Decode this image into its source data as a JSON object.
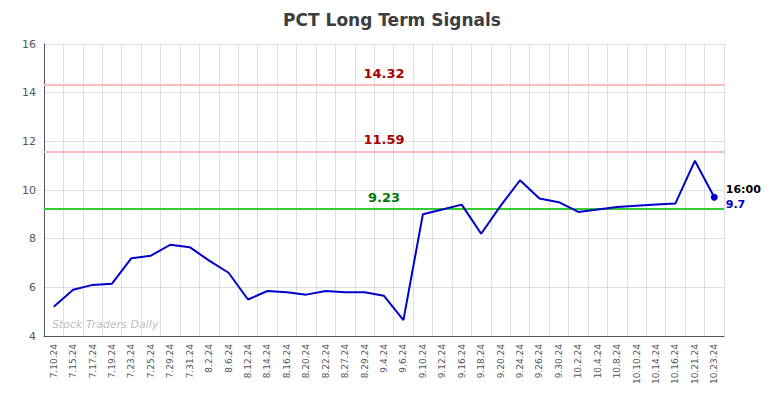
{
  "chart_data": {
    "type": "line",
    "title": "PCT Long Term Signals",
    "color": "#0000cc",
    "grid": true,
    "ylim": [
      4,
      16
    ],
    "yticks": [
      4,
      6,
      8,
      10,
      12,
      14,
      16
    ],
    "categories": [
      "7.10.24",
      "7.15.24",
      "7.17.24",
      "7.19.24",
      "7.23.24",
      "7.25.24",
      "7.29.24",
      "7.31.24",
      "8.2.24",
      "8.6.24",
      "8.12.24",
      "8.14.24",
      "8.16.24",
      "8.20.24",
      "8.22.24",
      "8.27.24",
      "8.29.24",
      "9.4.24",
      "9.6.24",
      "9.10.24",
      "9.12.24",
      "9.16.24",
      "9.18.24",
      "9.20.24",
      "9.24.24",
      "9.26.24",
      "9.30.24",
      "10.2.24",
      "10.4.24",
      "10.8.24",
      "10.10.24",
      "10.14.24",
      "10.16.24",
      "10.21.24",
      "10.23.24"
    ],
    "values": [
      5.2,
      5.9,
      6.1,
      6.15,
      7.2,
      7.3,
      7.75,
      7.65,
      7.1,
      6.6,
      5.5,
      5.85,
      5.8,
      5.7,
      5.85,
      5.8,
      5.8,
      5.65,
      4.65,
      9.0,
      9.2,
      9.4,
      8.2,
      9.35,
      10.4,
      9.65,
      9.5,
      9.1,
      9.2,
      9.3,
      9.35,
      9.4,
      9.45,
      11.2,
      9.7
    ],
    "hlines": [
      {
        "value": 14.32,
        "label": "14.32",
        "color": "#ffbbbb",
        "label_color": "#aa0000"
      },
      {
        "value": 11.59,
        "label": "11.59",
        "color": "#ffbbbb",
        "label_color": "#aa0000"
      },
      {
        "value": 9.23,
        "label": "9.23",
        "color": "#33cc33",
        "label_color": "#007700"
      }
    ],
    "annotations": [
      {
        "text": "16:00",
        "color": "#000000"
      },
      {
        "text": "9.7",
        "color": "#0000cc"
      }
    ],
    "watermark": "Stock Traders Daily"
  }
}
